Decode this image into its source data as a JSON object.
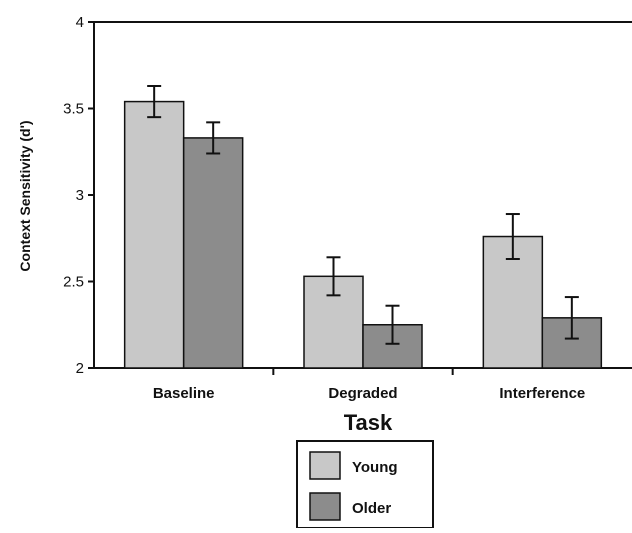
{
  "chart_data": {
    "type": "bar",
    "title": "",
    "xlabel": "Task",
    "ylabel": "Context Sensitivity (d')",
    "ylim": [
      2,
      4
    ],
    "yticks": [
      "2",
      "2.5",
      "3",
      "3.5",
      "4"
    ],
    "categories": [
      "Baseline",
      "Degraded",
      "Interference"
    ],
    "series": [
      {
        "name": "Young",
        "values": [
          3.54,
          2.53,
          2.76
        ],
        "error": [
          0.09,
          0.11,
          0.13
        ]
      },
      {
        "name": "Older",
        "values": [
          3.33,
          2.25,
          2.29
        ],
        "error": [
          0.09,
          0.11,
          0.12
        ]
      }
    ],
    "legend_position": "bottom-center",
    "error_bars": true,
    "grid": false
  },
  "colors": {
    "young": "#c8c8c8",
    "older": "#8c8c8c",
    "axis": "#111111"
  }
}
